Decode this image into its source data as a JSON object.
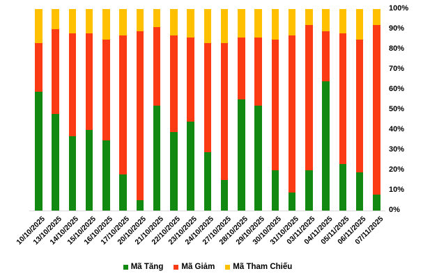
{
  "chart_data": {
    "type": "bar",
    "stacked": true,
    "percent_stacked": true,
    "title": "",
    "xlabel": "",
    "ylabel": "",
    "ylim": [
      0,
      100
    ],
    "y_axis_side": "right",
    "y_ticks": [
      "0%",
      "10%",
      "20%",
      "30%",
      "40%",
      "50%",
      "60%",
      "70%",
      "80%",
      "90%",
      "100%"
    ],
    "grid": "baseline-only",
    "legend_position": "bottom",
    "categories": [
      "10/10/2025",
      "13/10/2025",
      "14/10/2025",
      "15/10/2025",
      "16/10/2025",
      "17/10/2025",
      "20/10/2025",
      "21/10/2025",
      "22/10/2025",
      "23/10/2025",
      "24/10/2025",
      "27/10/2025",
      "28/10/2025",
      "29/10/2025",
      "30/10/2025",
      "31/10/2025",
      "03/11/2025",
      "04/11/2025",
      "05/11/2025",
      "06/11/2025",
      "07/11/2025"
    ],
    "series": [
      {
        "name": "Mã Tăng",
        "color": "#128A12",
        "values": [
          59,
          48,
          37,
          40,
          35,
          18,
          5,
          52,
          39,
          44,
          29,
          15,
          55,
          52,
          20,
          9,
          20,
          64,
          23,
          19,
          8
        ]
      },
      {
        "name": "Mã Giảm",
        "color": "#FB3B14",
        "values": [
          24,
          42,
          51,
          48,
          50,
          69,
          84,
          39,
          48,
          42,
          54,
          68,
          31,
          34,
          65,
          78,
          72,
          25,
          65,
          66,
          84
        ]
      },
      {
        "name": "Mã Tham Chiếu",
        "color": "#FFC000",
        "values": [
          17,
          10,
          12,
          12,
          15,
          13,
          11,
          9,
          13,
          14,
          17,
          17,
          14,
          14,
          15,
          13,
          8,
          11,
          12,
          15,
          8
        ]
      }
    ]
  },
  "colors": {
    "axis_line": "#d9d9d9",
    "text": "#000000",
    "background": "#ffffff"
  }
}
